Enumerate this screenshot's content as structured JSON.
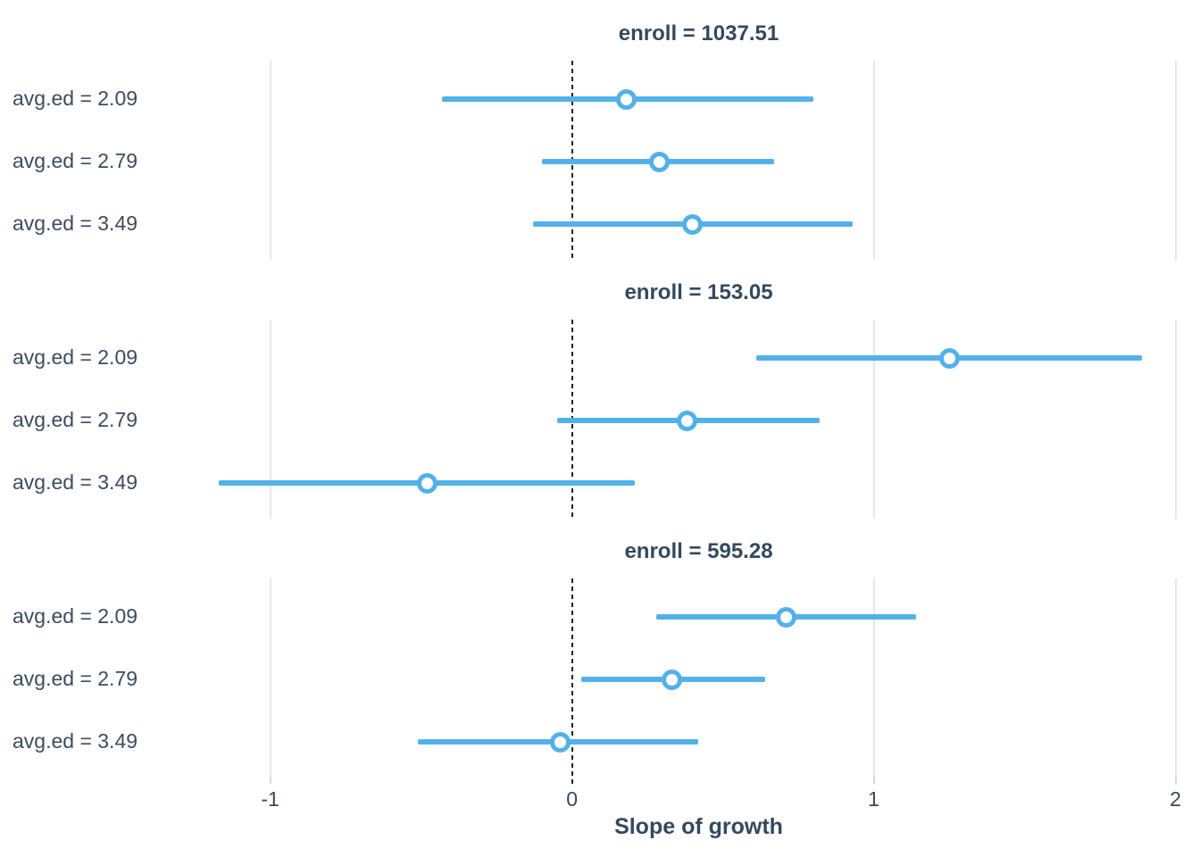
{
  "chart_data": {
    "type": "scatter",
    "subtype": "forest-plot-faceted",
    "title": "",
    "xlabel": "Slope of growth",
    "ylabel": "",
    "x_ticks": [
      -1,
      0,
      1,
      2
    ],
    "x_tick_labels": [
      "-1",
      "0",
      "1",
      "2"
    ],
    "xlim": [
      -1.2,
      2.04
    ],
    "reference_line_x": 0,
    "grid": "vertical-major-only",
    "legend_position": "none",
    "panels": [
      {
        "title": "enroll = 1037.51",
        "rows": [
          {
            "label": "avg.ed = 2.09",
            "estimate": 0.18,
            "ci_low": -0.43,
            "ci_high": 0.8
          },
          {
            "label": "avg.ed = 2.79",
            "estimate": 0.29,
            "ci_low": -0.1,
            "ci_high": 0.67
          },
          {
            "label": "avg.ed = 3.49",
            "estimate": 0.4,
            "ci_low": -0.13,
            "ci_high": 0.93
          }
        ]
      },
      {
        "title": "enroll = 153.05",
        "rows": [
          {
            "label": "avg.ed = 2.09",
            "estimate": 1.25,
            "ci_low": 0.61,
            "ci_high": 1.89
          },
          {
            "label": "avg.ed = 2.79",
            "estimate": 0.38,
            "ci_low": -0.05,
            "ci_high": 0.82
          },
          {
            "label": "avg.ed = 3.49",
            "estimate": -0.48,
            "ci_low": -1.17,
            "ci_high": 0.21
          }
        ]
      },
      {
        "title": "enroll = 595.28",
        "rows": [
          {
            "label": "avg.ed = 2.09",
            "estimate": 0.71,
            "ci_low": 0.28,
            "ci_high": 1.14
          },
          {
            "label": "avg.ed = 2.79",
            "estimate": 0.33,
            "ci_low": 0.03,
            "ci_high": 0.64
          },
          {
            "label": "avg.ed = 3.49",
            "estimate": -0.04,
            "ci_low": -0.51,
            "ci_high": 0.42
          }
        ]
      }
    ],
    "colors": {
      "series": "#53b1e9",
      "grid": "#e6e6e6",
      "reference_line": "#222222",
      "text_dark": "#34495e",
      "tick": "#d6d6d6",
      "background": "#ffffff"
    }
  }
}
